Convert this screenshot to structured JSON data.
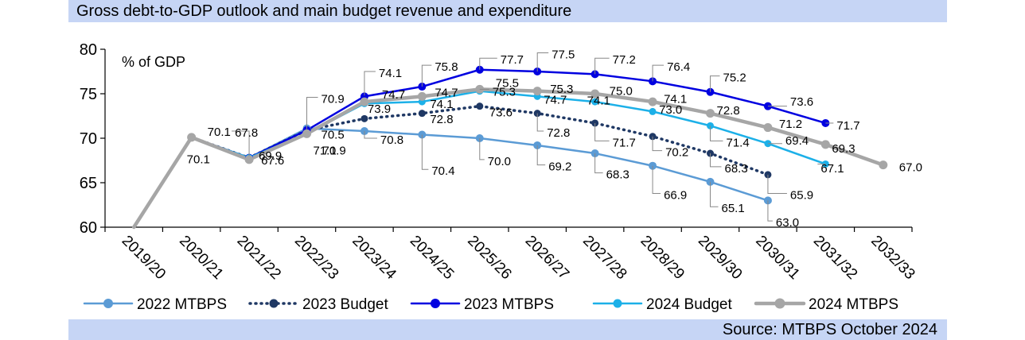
{
  "header": {
    "title": "Gross debt-to-GDP outlook and main budget revenue and expenditure"
  },
  "footer": {
    "source": "Source: MTBPS October 2024"
  },
  "chart_data": {
    "type": "line",
    "title": "Gross debt-to-GDP outlook and main budget revenue and expenditure",
    "ylabel": "% of GDP",
    "xlabel": "",
    "ylim": [
      60,
      80
    ],
    "yticks": [
      60,
      65,
      70,
      75,
      80
    ],
    "categories": [
      "2019/20",
      "2020/21",
      "2021/22",
      "2022/23",
      "2023/24",
      "2024/25",
      "2025/26",
      "2026/27",
      "2027/28",
      "2028/29",
      "2029/30",
      "2030/31",
      "2031/32",
      "2032/33"
    ],
    "series": [
      {
        "name": "2022 MTBPS",
        "color": "#5b9bd5",
        "style": "solid",
        "width": 2.5,
        "marker": 5,
        "values": [
          null,
          70.1,
          67.8,
          71.1,
          70.8,
          70.4,
          70.0,
          69.2,
          68.3,
          66.9,
          65.1,
          63.0,
          null,
          null
        ]
      },
      {
        "name": "2023 Budget",
        "color": "#1f3864",
        "style": "dotted",
        "width": 3.5,
        "marker": 4.5,
        "values": [
          null,
          70.1,
          67.8,
          70.9,
          72.2,
          72.8,
          73.6,
          72.8,
          71.7,
          70.2,
          68.3,
          65.9,
          null,
          null
        ]
      },
      {
        "name": "2023 MTBPS",
        "color": "#0000e0",
        "style": "solid",
        "width": 2.5,
        "marker": 5,
        "values": [
          null,
          70.1,
          67.8,
          70.9,
          74.7,
          75.8,
          77.7,
          77.5,
          77.2,
          76.4,
          75.2,
          73.6,
          71.7,
          null
        ]
      },
      {
        "name": "2024 Budget",
        "color": "#1cb0e8",
        "style": "solid",
        "width": 2.5,
        "marker": 4.5,
        "values": [
          null,
          70.1,
          67.8,
          70.5,
          73.9,
          74.1,
          75.3,
          74.7,
          74.1,
          73.0,
          71.4,
          69.4,
          67.1,
          null
        ]
      },
      {
        "name": "2024 MTBPS",
        "color": "#a6a6a6",
        "style": "solid",
        "width": 4.5,
        "marker": 5.5,
        "values": [
          60.0,
          70.1,
          67.6,
          70.5,
          74.1,
          74.7,
          75.5,
          75.3,
          75.0,
          74.1,
          72.8,
          71.2,
          69.3,
          67.0
        ]
      }
    ],
    "annotations": [
      {
        "text": "70.1"
      },
      {
        "text": "70.1"
      },
      {
        "text": "67.8"
      },
      {
        "text": "69.9"
      },
      {
        "text": "67.6"
      },
      {
        "text": "70.9"
      },
      {
        "text": "70.9"
      },
      {
        "text": "70.5"
      },
      {
        "text": "71.1"
      },
      {
        "text": "74.1"
      },
      {
        "text": "74.7"
      },
      {
        "text": "73.9"
      },
      {
        "text": "70.8"
      },
      {
        "text": "75.8"
      },
      {
        "text": "74.7"
      },
      {
        "text": "74.1"
      },
      {
        "text": "72.8"
      },
      {
        "text": "70.4"
      },
      {
        "text": "77.7"
      },
      {
        "text": "75.5"
      },
      {
        "text": "75.3"
      },
      {
        "text": "73.6"
      },
      {
        "text": "70.0"
      },
      {
        "text": "77.5"
      },
      {
        "text": "75.3"
      },
      {
        "text": "74.7"
      },
      {
        "text": "72.8"
      },
      {
        "text": "69.2"
      },
      {
        "text": "77.2"
      },
      {
        "text": "75.0"
      },
      {
        "text": "74.1"
      },
      {
        "text": "71.7"
      },
      {
        "text": "68.3"
      },
      {
        "text": "76.4"
      },
      {
        "text": "74.1"
      },
      {
        "text": "73.0"
      },
      {
        "text": "70.2"
      },
      {
        "text": "66.9"
      },
      {
        "text": "75.2"
      },
      {
        "text": "72.8"
      },
      {
        "text": "71.4"
      },
      {
        "text": "68.3"
      },
      {
        "text": "65.1"
      },
      {
        "text": "73.6"
      },
      {
        "text": "71.2"
      },
      {
        "text": "69.4"
      },
      {
        "text": "65.9"
      },
      {
        "text": "63.0"
      },
      {
        "text": "71.7"
      },
      {
        "text": "69.3"
      },
      {
        "text": "67.1"
      },
      {
        "text": "67.0"
      }
    ],
    "legend": {
      "position": "bottom"
    }
  }
}
